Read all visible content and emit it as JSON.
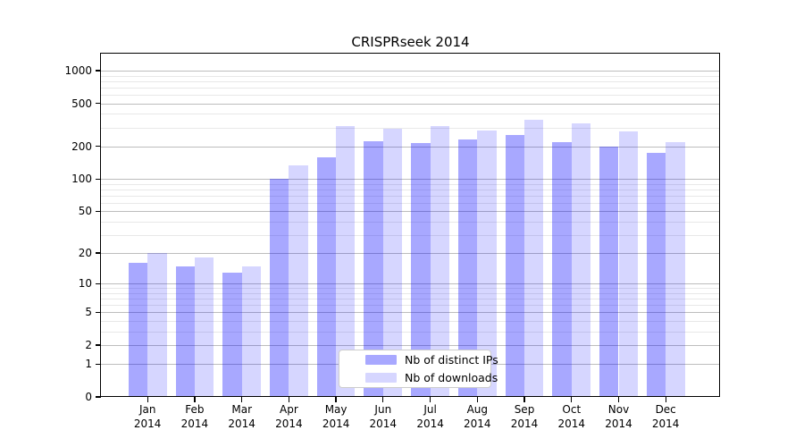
{
  "chart_data": {
    "type": "bar",
    "title": "CRISPRseek 2014",
    "categories": [
      "Jan",
      "Feb",
      "Mar",
      "Apr",
      "May",
      "Jun",
      "Jul",
      "Aug",
      "Sep",
      "Oct",
      "Nov",
      "Dec"
    ],
    "category_year": "2014",
    "series": [
      {
        "name": "Nb of distinct IPs",
        "color": "rgba(0,0,255,0.34)",
        "values": [
          16,
          15,
          13,
          100,
          158,
          224,
          216,
          231,
          253,
          220,
          200,
          176
        ]
      },
      {
        "name": "Nb of downloads",
        "color": "rgba(0,0,255,0.16)",
        "values": [
          20,
          18,
          15,
          135,
          307,
          291,
          306,
          280,
          350,
          324,
          273,
          220
        ]
      }
    ],
    "y_axis": {
      "scale": "log10(1+v)",
      "ticks": [
        0,
        1,
        2,
        5,
        10,
        20,
        50,
        100,
        200,
        500,
        1000
      ],
      "minor_gridlines": [
        3,
        4,
        6,
        7,
        8,
        9,
        30,
        40,
        60,
        70,
        80,
        90,
        300,
        400,
        600,
        700,
        800,
        900
      ],
      "ylim": [
        0,
        1433
      ],
      "major_gridline_color": "#bdbdbd",
      "minor_gridline_color": "#e8e8e8"
    },
    "xlabel": "",
    "ylabel": "",
    "grid": "on",
    "legend_position": "lower-center"
  }
}
